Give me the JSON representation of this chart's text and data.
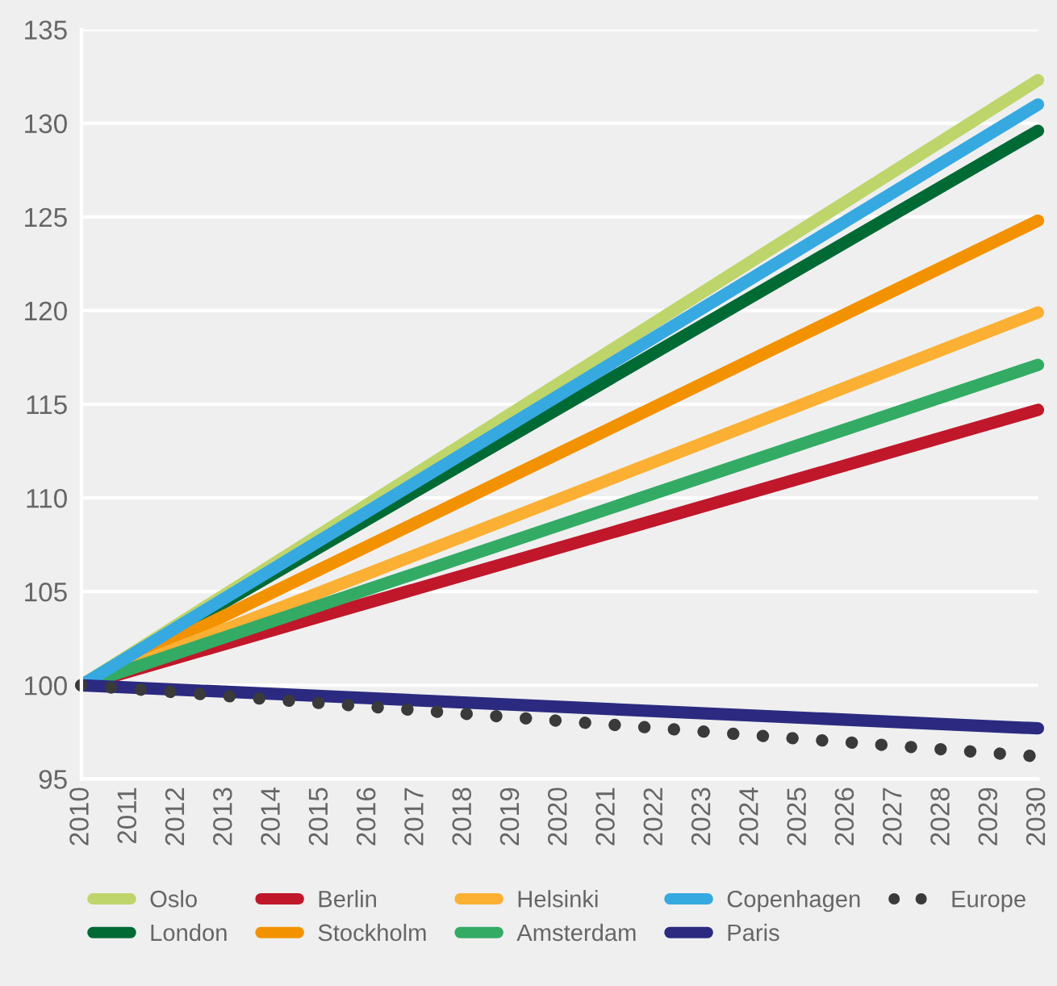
{
  "chart_data": {
    "type": "line",
    "x": [
      2010,
      2030
    ],
    "series": [
      {
        "name": "Oslo",
        "color": "#bed56b",
        "values": [
          100,
          132.3
        ]
      },
      {
        "name": "London",
        "color": "#006a35",
        "values": [
          100,
          129.6
        ]
      },
      {
        "name": "Berlin",
        "color": "#c0172b",
        "values": [
          100,
          114.7
        ]
      },
      {
        "name": "Stockholm",
        "color": "#f39200",
        "values": [
          100,
          124.8
        ]
      },
      {
        "name": "Helsinki",
        "color": "#fbb034",
        "values": [
          100,
          119.9
        ]
      },
      {
        "name": "Amsterdam",
        "color": "#33ab65",
        "values": [
          100,
          117.1
        ]
      },
      {
        "name": "Copenhagen",
        "color": "#36a9e1",
        "values": [
          100,
          131.0
        ]
      },
      {
        "name": "Paris",
        "color": "#2b2a80",
        "values": [
          100,
          97.7
        ]
      },
      {
        "name": "Europe",
        "color": "#3a3a3a",
        "values": [
          100,
          96.2
        ],
        "line_style": "dotted"
      }
    ],
    "xlim": [
      2010,
      2030
    ],
    "xticks": [
      2010,
      2011,
      2012,
      2013,
      2014,
      2015,
      2016,
      2017,
      2018,
      2019,
      2020,
      2021,
      2022,
      2023,
      2024,
      2025,
      2026,
      2027,
      2028,
      2029,
      2030
    ],
    "ylim": [
      95,
      135
    ],
    "yticks": [
      95,
      100,
      105,
      110,
      115,
      120,
      125,
      130,
      135
    ],
    "grid": "y",
    "legend": "bottom",
    "line_style": "solid"
  }
}
